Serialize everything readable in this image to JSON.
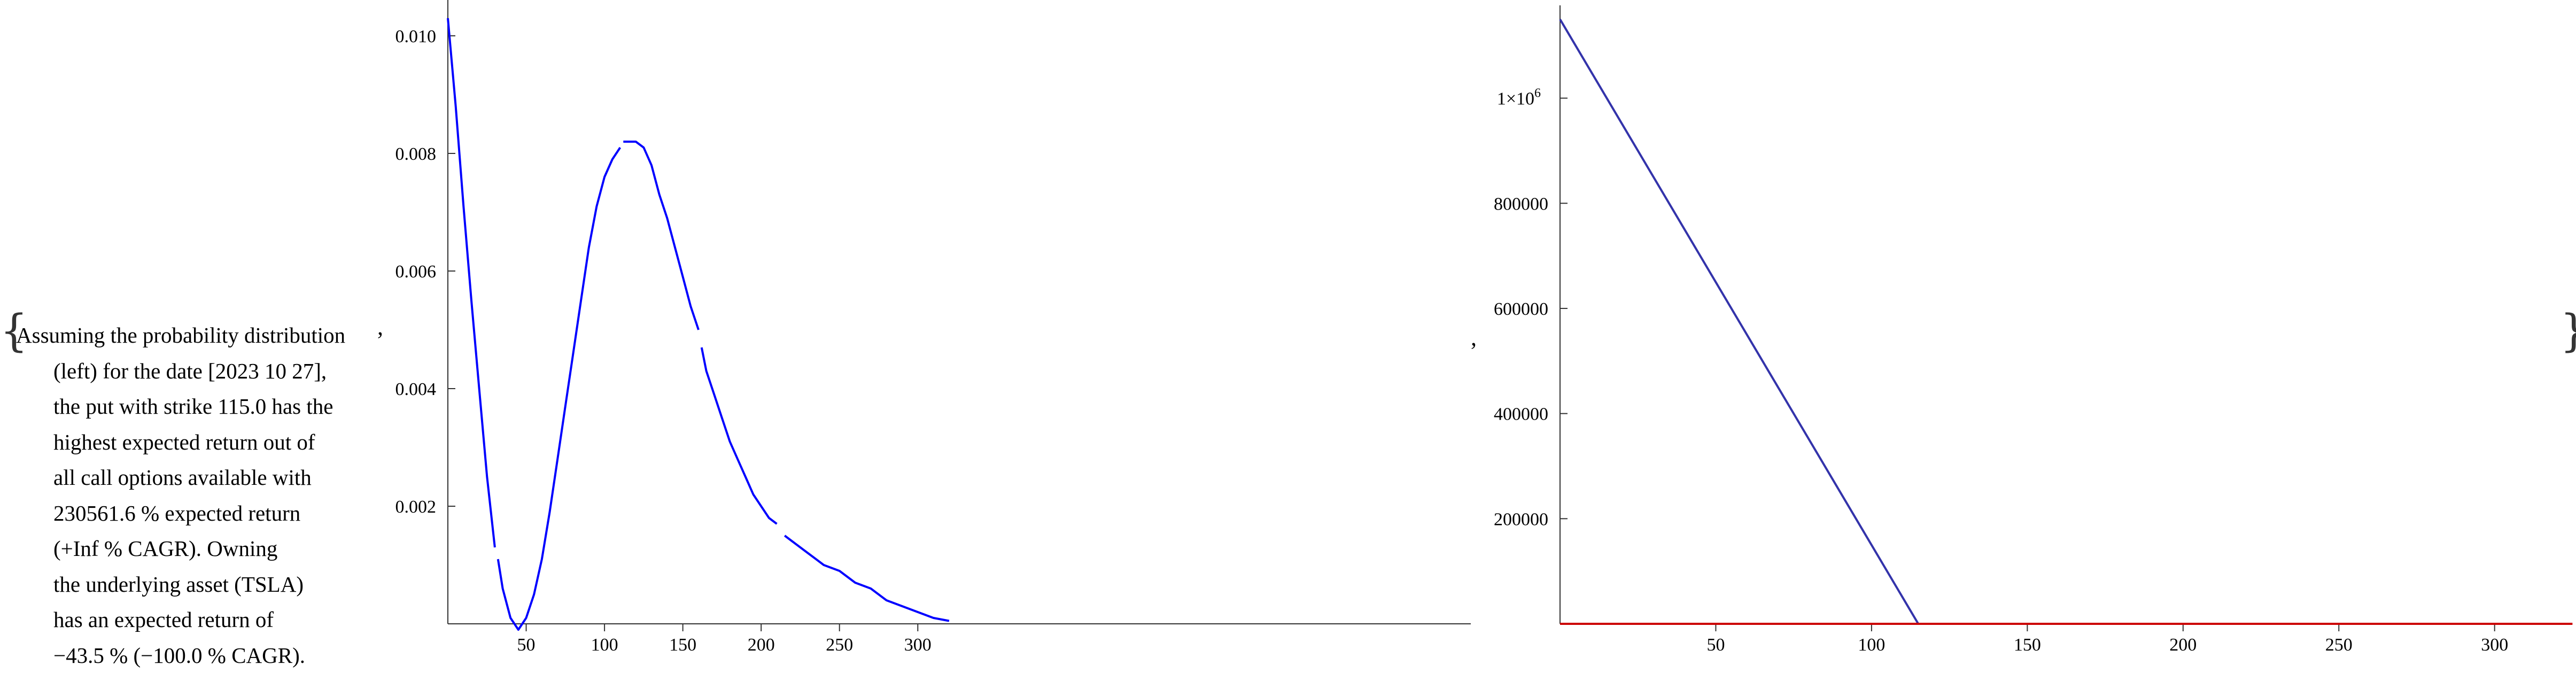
{
  "text": {
    "open_brace": "{",
    "close_brace": "}",
    "comma_after_note": ",",
    "comma_between_charts": ",",
    "note_lines": [
      "Assuming the probability distribution",
      "(left) for the date [2023 10 27],",
      "the put with strike 115.0 has the",
      "highest expected return out of",
      "all call options available with",
      "230561.6 % expected return",
      "(+Inf % CAGR). Owning",
      "the underlying asset (TSLA)",
      "has an expected return of",
      "−43.5 % (−100.0 % CAGR)."
    ]
  },
  "chart_data": [
    {
      "type": "line",
      "title": "",
      "xlabel": "",
      "ylabel": "",
      "xlim": [
        0,
        325
      ],
      "ylim": [
        0,
        0.0105
      ],
      "grid": false,
      "x_ticks": [
        {
          "value": 50,
          "label": "50"
        },
        {
          "value": 100,
          "label": "100"
        },
        {
          "value": 150,
          "label": "150"
        },
        {
          "value": 200,
          "label": "200"
        },
        {
          "value": 250,
          "label": "250"
        },
        {
          "value": 300,
          "label": "300"
        }
      ],
      "y_ticks": [
        {
          "value": 0.002,
          "label": "0.002"
        },
        {
          "value": 0.004,
          "label": "0.004"
        },
        {
          "value": 0.006,
          "label": "0.006"
        },
        {
          "value": 0.008,
          "label": "0.008"
        },
        {
          "value": 0.01,
          "label": "0.010"
        }
      ],
      "series": [
        {
          "color": "#0000ff",
          "segments": [
            [
              [
                0,
                0.0103
              ],
              [
                5,
                0.0088
              ],
              [
                10,
                0.0071
              ],
              [
                15,
                0.0055
              ],
              [
                20,
                0.004
              ],
              [
                25,
                0.0025
              ],
              [
                30,
                0.0013
              ]
            ],
            [
              [
                32,
                0.0011
              ],
              [
                35,
                0.0006
              ],
              [
                40,
                0.0001
              ],
              [
                45,
                -0.0001
              ],
              [
                50,
                0.0001
              ],
              [
                55,
                0.0005
              ],
              [
                60,
                0.0011
              ],
              [
                65,
                0.0019
              ],
              [
                70,
                0.0028
              ],
              [
                75,
                0.0037
              ],
              [
                80,
                0.0046
              ],
              [
                85,
                0.0055
              ],
              [
                90,
                0.0064
              ],
              [
                95,
                0.0071
              ],
              [
                100,
                0.0076
              ],
              [
                105,
                0.0079
              ],
              [
                110,
                0.0081
              ]
            ],
            [
              [
                112,
                0.0082
              ],
              [
                115,
                0.0082
              ],
              [
                120,
                0.0082
              ],
              [
                125,
                0.0081
              ],
              [
                130,
                0.0078
              ],
              [
                135,
                0.0073
              ],
              [
                140,
                0.0069
              ],
              [
                145,
                0.0064
              ],
              [
                150,
                0.0059
              ],
              [
                155,
                0.0054
              ],
              [
                160,
                0.005
              ]
            ],
            [
              [
                162,
                0.0047
              ],
              [
                165,
                0.0043
              ],
              [
                170,
                0.0039
              ],
              [
                175,
                0.0035
              ],
              [
                180,
                0.0031
              ],
              [
                185,
                0.0028
              ],
              [
                190,
                0.0025
              ],
              [
                195,
                0.0022
              ],
              [
                200,
                0.002
              ],
              [
                205,
                0.0018
              ],
              [
                210,
                0.0017
              ]
            ],
            [
              [
                215,
                0.0015
              ],
              [
                220,
                0.0014
              ],
              [
                230,
                0.0012
              ],
              [
                240,
                0.001
              ],
              [
                250,
                0.0009
              ],
              [
                260,
                0.0007
              ],
              [
                270,
                0.0006
              ],
              [
                280,
                0.0004
              ],
              [
                290,
                0.0003
              ],
              [
                300,
                0.0002
              ],
              [
                310,
                0.0001
              ],
              [
                320,
                5e-05
              ]
            ]
          ]
        }
      ]
    },
    {
      "type": "line",
      "title": "",
      "xlabel": "",
      "ylabel": "",
      "xlim": [
        0,
        325
      ],
      "ylim": [
        0,
        1150000
      ],
      "grid": false,
      "x_ticks": [
        {
          "value": 50,
          "label": "50"
        },
        {
          "value": 100,
          "label": "100"
        },
        {
          "value": 150,
          "label": "150"
        },
        {
          "value": 200,
          "label": "200"
        },
        {
          "value": 250,
          "label": "250"
        },
        {
          "value": 300,
          "label": "300"
        }
      ],
      "y_ticks": [
        {
          "value": 200000,
          "label": "200000"
        },
        {
          "value": 400000,
          "label": "400000"
        },
        {
          "value": 600000,
          "label": "600000"
        },
        {
          "value": 800000,
          "label": "800000"
        },
        {
          "value": 1000000,
          "label": "1×10",
          "sup": "6"
        }
      ],
      "series": [
        {
          "color": "#3333aa",
          "points": [
            [
              0,
              1150000
            ],
            [
              115,
              0
            ]
          ]
        },
        {
          "color": "#cc0000",
          "points": [
            [
              0,
              0
            ],
            [
              325,
              0
            ]
          ]
        }
      ]
    }
  ]
}
